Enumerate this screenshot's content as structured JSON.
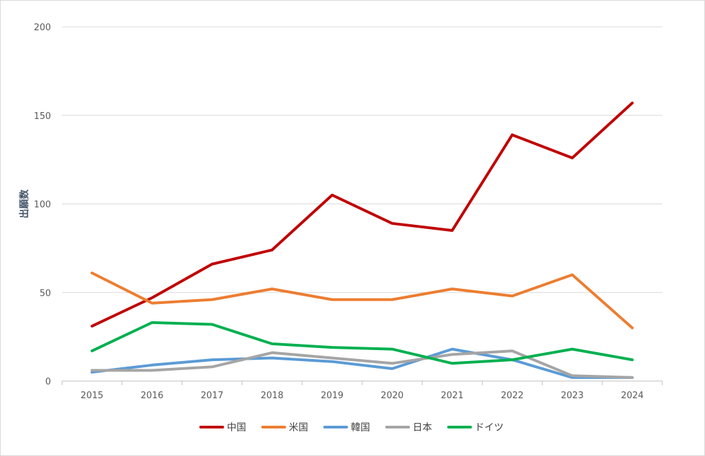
{
  "chart_data": {
    "type": "line",
    "title": "",
    "xlabel": "",
    "ylabel": "出願数",
    "x": [
      "2015",
      "2016",
      "2017",
      "2018",
      "2019",
      "2020",
      "2021",
      "2022",
      "2023",
      "2024"
    ],
    "ylim": [
      0,
      200
    ],
    "yticks": [
      0,
      50,
      100,
      150,
      200
    ],
    "grid": true,
    "legend_position": "bottom",
    "series": [
      {
        "name": "中国",
        "color": "#c00000",
        "values": [
          31,
          47,
          66,
          74,
          105,
          89,
          85,
          139,
          126,
          157
        ]
      },
      {
        "name": "米国",
        "color": "#ed7d31",
        "values": [
          61,
          44,
          46,
          52,
          46,
          46,
          52,
          48,
          60,
          30
        ]
      },
      {
        "name": "韓国",
        "color": "#5b9bd5",
        "values": [
          5,
          9,
          12,
          13,
          11,
          7,
          18,
          12,
          2,
          2
        ]
      },
      {
        "name": "日本",
        "color": "#a5a5a5",
        "values": [
          6,
          6,
          8,
          16,
          13,
          10,
          15,
          17,
          3,
          2
        ]
      },
      {
        "name": "ドイツ",
        "color": "#00b050",
        "values": [
          17,
          33,
          32,
          21,
          19,
          18,
          10,
          12,
          18,
          12
        ]
      }
    ]
  }
}
